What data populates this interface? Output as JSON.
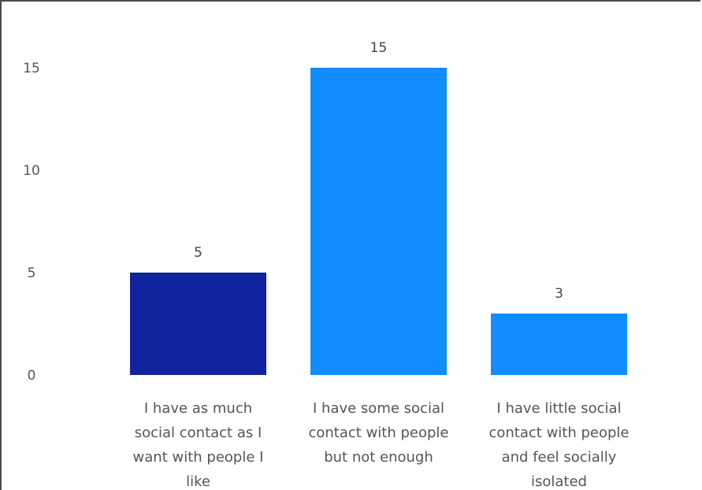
{
  "chart_data": {
    "type": "bar",
    "title": "",
    "xlabel": "",
    "ylabel": "",
    "ylim": [
      0,
      15
    ],
    "yticks": [
      0,
      5,
      10,
      15
    ],
    "grid": false,
    "categories": [
      [
        "I have as much",
        "social contact as I",
        "want with people I",
        "like"
      ],
      [
        "I have some social",
        "contact with people",
        "but not enough"
      ],
      [
        "I have little social",
        "contact with people",
        "and feel socially",
        "isolated"
      ]
    ],
    "values": [
      5,
      15,
      3
    ],
    "data_labels": [
      "5",
      "15",
      "3"
    ],
    "colors": [
      "#12239E",
      "#118DFF",
      "#118DFF"
    ]
  }
}
